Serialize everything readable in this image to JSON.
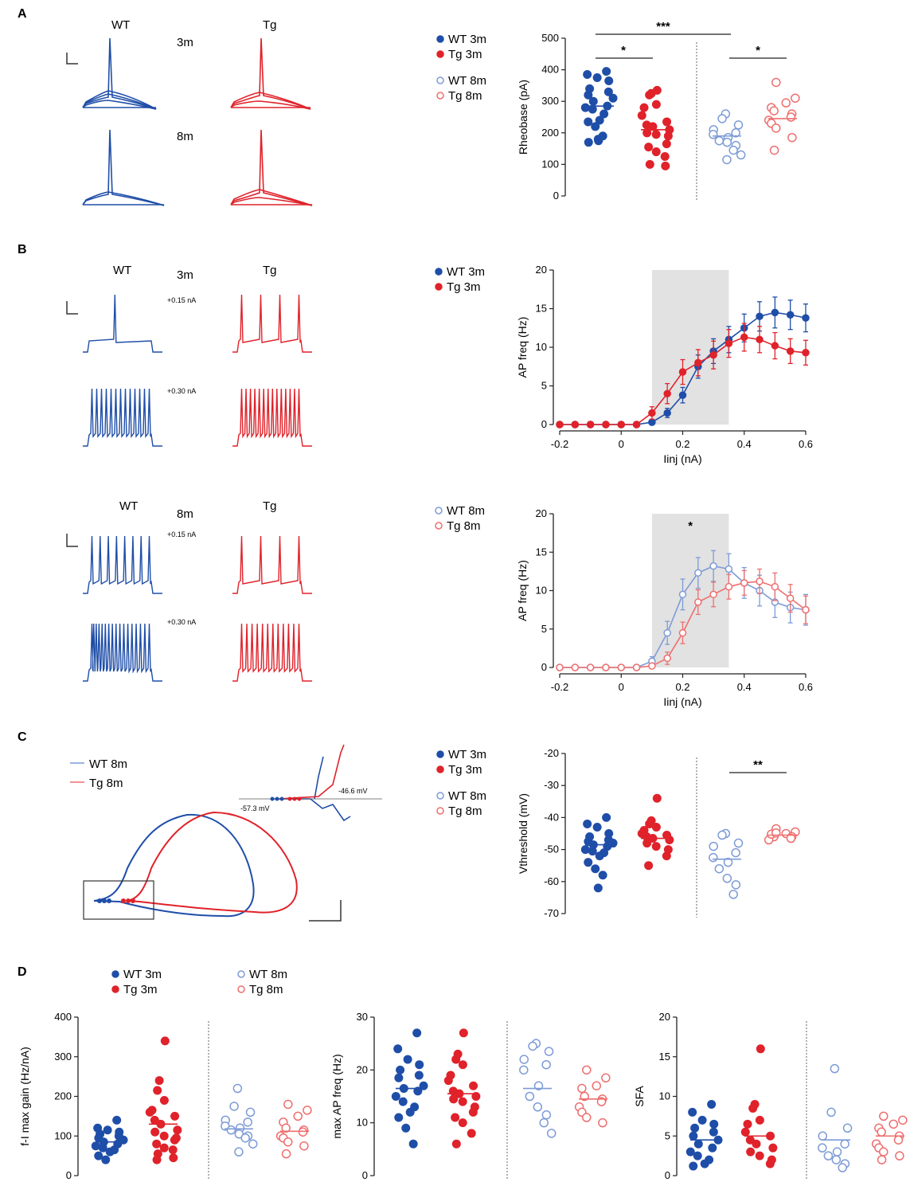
{
  "panels": {
    "a": "A",
    "b": "B",
    "c": "C",
    "d": "D"
  },
  "colors": {
    "wt": "#1f4ea8",
    "tg": "#e0222a",
    "wt_light": "#7d9bd6",
    "tg_light": "#ef6e6e",
    "shade": "#e2e2e2"
  },
  "trace_labels": {
    "a_wt": "WT",
    "a_tg": "Tg",
    "a_3m": "3m",
    "a_8m": "8m",
    "b_wt1": "WT",
    "b_3m": "3m",
    "b_tg1": "Tg",
    "b_015_1": "+0.15 nA",
    "b_030_1": "+0.30 nA",
    "b_wt2": "WT",
    "b_8m": "8m",
    "b_tg2": "Tg",
    "b_015_2": "+0.15 nA",
    "b_030_2": "+0.30 nA",
    "c_wt8m": "WT 8m",
    "c_tg8m": "Tg 8m",
    "c_v1": "-46.6 mV",
    "c_v2": "-57.3 mV"
  },
  "legends": {
    "a": [
      "WT 3m",
      "Tg  3m",
      "WT 8m",
      "Tg  8m"
    ],
    "b1": [
      "WT 3m",
      "Tg  3m"
    ],
    "b2": [
      "WT 8m",
      "Tg  8m"
    ],
    "c": [
      "WT 3m",
      "Tg  3m",
      "WT 8m",
      "Tg  8m"
    ],
    "d": [
      "WT 3m",
      "Tg  3m",
      "WT 8m",
      "Tg  8m"
    ]
  },
  "chart_data": [
    {
      "id": "A-rheobase",
      "type": "scatter",
      "ylabel": "Rheobase (pA)",
      "ylim": [
        0,
        500
      ],
      "yticks": [
        0,
        100,
        200,
        300,
        400,
        500
      ],
      "significance": [
        "*",
        "***",
        "*"
      ],
      "series": [
        {
          "name": "WT 3m",
          "mean": 285,
          "values": [
            395,
            385,
            375,
            365,
            340,
            330,
            320,
            310,
            300,
            285,
            280,
            275,
            260,
            240,
            235,
            220,
            190,
            180,
            175,
            170
          ]
        },
        {
          "name": "Tg  3m",
          "mean": 210,
          "values": [
            335,
            325,
            320,
            290,
            280,
            255,
            235,
            225,
            220,
            210,
            200,
            195,
            190,
            165,
            155,
            140,
            125,
            100,
            95
          ]
        },
        {
          "name": "WT 8m",
          "mean": 190,
          "values": [
            260,
            245,
            225,
            210,
            200,
            195,
            185,
            175,
            170,
            160,
            145,
            130,
            115
          ]
        },
        {
          "name": "Tg  8m",
          "mean": 245,
          "values": [
            360,
            310,
            295,
            280,
            270,
            260,
            250,
            240,
            230,
            215,
            185,
            145
          ]
        }
      ]
    },
    {
      "id": "B-fI-3m",
      "type": "line",
      "xlabel": "Iinj (nA)",
      "ylabel": "AP freq (Hz)",
      "xlim": [
        -0.2,
        0.6
      ],
      "ylim": [
        0,
        20
      ],
      "xticks": [
        -0.2,
        0,
        0.2,
        0.4,
        0.6
      ],
      "yticks": [
        0,
        5,
        10,
        15,
        20
      ],
      "shaded_x": [
        0.1,
        0.35
      ],
      "x": [
        -0.2,
        -0.15,
        -0.1,
        -0.05,
        0,
        0.05,
        0.1,
        0.15,
        0.2,
        0.25,
        0.3,
        0.35,
        0.4,
        0.45,
        0.5,
        0.55,
        0.6
      ],
      "series": [
        {
          "name": "WT 3m",
          "values": [
            0,
            0,
            0,
            0,
            0,
            0,
            0.3,
            1.5,
            3.8,
            7.5,
            9.5,
            11.0,
            12.5,
            14.0,
            14.5,
            14.2,
            13.8
          ],
          "err": [
            0,
            0,
            0,
            0,
            0,
            0,
            0.3,
            0.6,
            1.0,
            1.5,
            1.6,
            1.7,
            1.8,
            1.9,
            2.0,
            1.9,
            1.8
          ]
        },
        {
          "name": "Tg  3m",
          "values": [
            0,
            0,
            0,
            0,
            0,
            0,
            1.5,
            4.0,
            6.8,
            8.0,
            9.0,
            10.5,
            11.3,
            11.0,
            10.2,
            9.5,
            9.3
          ],
          "err": [
            0,
            0,
            0,
            0,
            0,
            0,
            0.8,
            1.3,
            1.6,
            1.7,
            1.8,
            1.8,
            1.8,
            1.7,
            1.7,
            1.6,
            1.6
          ]
        }
      ]
    },
    {
      "id": "B-fI-8m",
      "type": "line",
      "xlabel": "Iinj (nA)",
      "ylabel": "AP freq (Hz)",
      "xlim": [
        -0.2,
        0.6
      ],
      "ylim": [
        0,
        20
      ],
      "xticks": [
        -0.2,
        0,
        0.2,
        0.4,
        0.6
      ],
      "yticks": [
        0,
        5,
        10,
        15,
        20
      ],
      "shaded_x": [
        0.1,
        0.35
      ],
      "significance": "*",
      "x": [
        -0.2,
        -0.15,
        -0.1,
        -0.05,
        0,
        0.05,
        0.1,
        0.15,
        0.2,
        0.25,
        0.3,
        0.35,
        0.4,
        0.45,
        0.5,
        0.55,
        0.6
      ],
      "series": [
        {
          "name": "WT 8m",
          "values": [
            0,
            0,
            0,
            0,
            0,
            0,
            0.8,
            4.5,
            9.5,
            12.3,
            13.2,
            12.8,
            11.0,
            10.0,
            8.5,
            7.8,
            7.5
          ],
          "err": [
            0,
            0,
            0,
            0,
            0,
            0,
            0.6,
            1.5,
            2.0,
            2.0,
            2.0,
            2.0,
            2.0,
            2.0,
            2.0,
            2.0,
            2.0
          ]
        },
        {
          "name": "Tg  8m",
          "values": [
            0,
            0,
            0,
            0,
            0,
            0,
            0.2,
            1.2,
            4.5,
            8.5,
            9.5,
            10.5,
            11.0,
            11.2,
            10.5,
            9.0,
            7.5
          ],
          "err": [
            0,
            0,
            0,
            0,
            0,
            0,
            0.3,
            0.8,
            1.4,
            1.6,
            1.6,
            1.6,
            1.6,
            1.6,
            1.8,
            1.8,
            1.8
          ]
        }
      ]
    },
    {
      "id": "C-Vthreshold",
      "type": "scatter",
      "ylabel": "Vthreshold (mV)",
      "ylim": [
        -70,
        -20
      ],
      "yticks": [
        -70,
        -60,
        -50,
        -40,
        -30,
        -20
      ],
      "significance": "**",
      "series": [
        {
          "name": "WT 3m",
          "mean": -48.5,
          "values": [
            -40,
            -42,
            -43,
            -45,
            -46,
            -47,
            -47.5,
            -48,
            -48.5,
            -49,
            -50,
            -50.5,
            -51,
            -52,
            -54,
            -56,
            -58,
            -62
          ]
        },
        {
          "name": "Tg  3m",
          "mean": -46.5,
          "values": [
            -34,
            -41,
            -42,
            -43,
            -44,
            -45,
            -45.5,
            -46,
            -46.5,
            -47,
            -48,
            -49,
            -50,
            -52,
            -55
          ]
        },
        {
          "name": "WT 8m",
          "mean": -53,
          "values": [
            -45,
            -45.5,
            -48,
            -49,
            -51,
            -52.5,
            -54,
            -56,
            -59,
            -61,
            -64
          ]
        },
        {
          "name": "Tg  8m",
          "mean": -45.5,
          "values": [
            -43.5,
            -44.5,
            -45,
            -45.5,
            -46,
            -46,
            -46.5,
            -47,
            -45.2,
            -44.8
          ]
        }
      ]
    },
    {
      "id": "D-fI-max-gain",
      "type": "scatter",
      "ylabel": "f-I max gain (Hz/nA)",
      "ylim": [
        0,
        400
      ],
      "yticks": [
        0,
        100,
        200,
        300,
        400
      ],
      "series": [
        {
          "name": "WT 3m",
          "mean": 85,
          "values": [
            140,
            120,
            115,
            110,
            105,
            100,
            95,
            90,
            85,
            80,
            75,
            70,
            65,
            60,
            50,
            40
          ]
        },
        {
          "name": "Tg  3m",
          "mean": 130,
          "values": [
            340,
            240,
            215,
            190,
            165,
            160,
            150,
            140,
            130,
            115,
            110,
            100,
            95,
            90,
            80,
            70,
            65,
            55,
            45,
            40
          ]
        },
        {
          "name": "WT 8m",
          "mean": 118,
          "values": [
            220,
            175,
            160,
            140,
            135,
            125,
            120,
            115,
            105,
            100,
            95,
            80,
            60
          ]
        },
        {
          "name": "Tg  8m",
          "mean": 112,
          "values": [
            180,
            165,
            150,
            135,
            120,
            115,
            110,
            100,
            95,
            85,
            75,
            55
          ]
        }
      ]
    },
    {
      "id": "D-max-AP-freq",
      "type": "scatter",
      "ylabel": "max AP freq (Hz)",
      "ylim": [
        0,
        30
      ],
      "yticks": [
        0,
        10,
        20,
        30
      ],
      "series": [
        {
          "name": "WT 3m",
          "mean": 16.5,
          "values": [
            27,
            24,
            22,
            21,
            20,
            19,
            18.5,
            17,
            16.5,
            16,
            15,
            14,
            13,
            12,
            11,
            9,
            6
          ]
        },
        {
          "name": "Tg  3m",
          "mean": 15.5,
          "values": [
            27,
            23,
            22,
            21,
            19,
            18,
            17,
            16,
            15.5,
            15,
            14.5,
            14,
            13,
            12,
            11,
            10,
            8,
            6
          ]
        },
        {
          "name": "WT 8m",
          "mean": 16.5,
          "values": [
            25,
            24.5,
            23.5,
            22,
            21,
            20,
            17,
            15,
            13,
            11.5,
            10,
            8
          ]
        },
        {
          "name": "Tg  8m",
          "mean": 14.5,
          "values": [
            20,
            18.5,
            17,
            16.5,
            15,
            14.5,
            14,
            13,
            12,
            11,
            10
          ]
        }
      ]
    },
    {
      "id": "D-SFA",
      "type": "scatter",
      "ylabel": "SFA",
      "ylim": [
        0,
        20
      ],
      "yticks": [
        0,
        5,
        10,
        15,
        20
      ],
      "series": [
        {
          "name": "WT 3m",
          "mean": 4.5,
          "values": [
            9,
            8,
            7,
            6.5,
            6,
            5.5,
            5,
            4.5,
            4,
            3.5,
            3,
            2.5,
            2,
            1.5,
            1.2
          ]
        },
        {
          "name": "Tg  3m",
          "mean": 5,
          "values": [
            16,
            9,
            8.5,
            7,
            6.5,
            5.5,
            5,
            4.5,
            4,
            3.5,
            3,
            2.5,
            2,
            1.5
          ]
        },
        {
          "name": "WT 8m",
          "mean": 4.5,
          "values": [
            13.5,
            8,
            6,
            5,
            4,
            3.5,
            3,
            2.5,
            2,
            1.5,
            1
          ]
        },
        {
          "name": "Tg  8m",
          "mean": 5,
          "values": [
            7.5,
            7,
            6.5,
            6,
            5.5,
            5,
            4.5,
            4,
            3.5,
            3,
            2.5,
            2
          ]
        }
      ]
    }
  ]
}
